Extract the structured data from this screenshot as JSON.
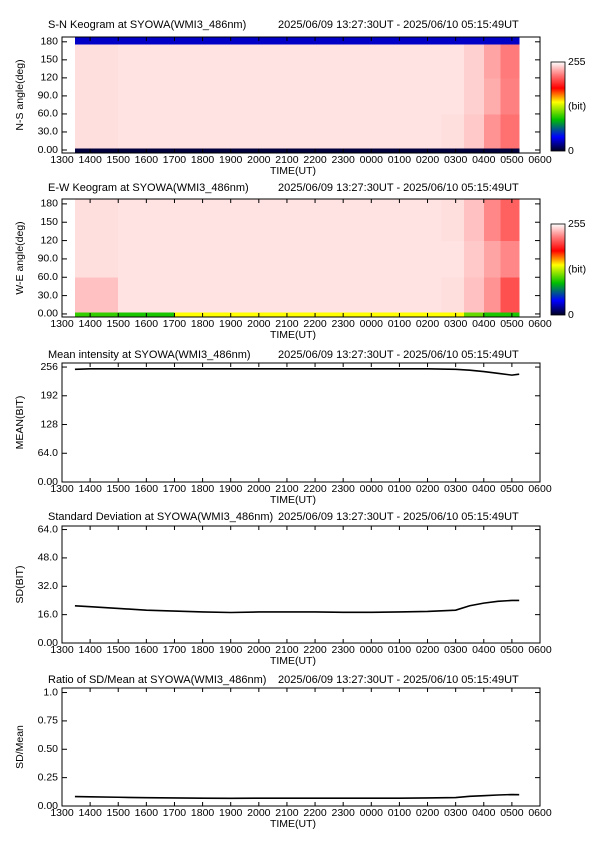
{
  "chart_data": [
    {
      "type": "heatmap",
      "title": "S-N Keogram at SYOWA(WMI3_486nm)",
      "subtitle": "2025/06/09 13:27:30UT - 2025/06/10 05:15:49UT",
      "xlabel": "TIME(UT)",
      "ylabel": "N-S angle(deg)",
      "xlim": [
        13,
        30
      ],
      "xticks": [
        {
          "value": 13,
          "label": "1300"
        },
        {
          "value": 14,
          "label": "1400"
        },
        {
          "value": 15,
          "label": "1500"
        },
        {
          "value": 16,
          "label": "1600"
        },
        {
          "value": 17,
          "label": "1700"
        },
        {
          "value": 18,
          "label": "1800"
        },
        {
          "value": 19,
          "label": "1900"
        },
        {
          "value": 20,
          "label": "2000"
        },
        {
          "value": 21,
          "label": "2100"
        },
        {
          "value": 22,
          "label": "2200"
        },
        {
          "value": 23,
          "label": "2300"
        },
        {
          "value": 24,
          "label": "0000"
        },
        {
          "value": 25,
          "label": "0100"
        },
        {
          "value": 26,
          "label": "0200"
        },
        {
          "value": 27,
          "label": "0300"
        },
        {
          "value": 28,
          "label": "0400"
        },
        {
          "value": 29,
          "label": "0500"
        },
        {
          "value": 30,
          "label": "0600"
        }
      ],
      "ylim": [
        -5,
        188
      ],
      "yticks": [
        {
          "value": 0,
          "label": "0.00"
        },
        {
          "value": 30,
          "label": "30.0"
        },
        {
          "value": 60,
          "label": "60.0"
        },
        {
          "value": 90,
          "label": "90.0"
        },
        120,
        150,
        180
      ],
      "x_bins": [
        13.46,
        15,
        17,
        19,
        21,
        23,
        25,
        26.5,
        27.3,
        28,
        28.6,
        29.26
      ],
      "y_bins": [
        -5,
        3,
        60,
        120,
        176,
        188
      ],
      "values": [
        [
          5,
          5,
          5,
          5,
          5,
          5,
          5,
          5,
          5,
          5,
          5
        ],
        [
          246,
          247,
          247,
          247,
          247,
          247,
          247,
          246,
          240,
          225,
          215
        ],
        [
          246,
          247,
          247,
          247,
          247,
          247,
          247,
          247,
          242,
          232,
          220
        ],
        [
          246,
          247,
          247,
          247,
          247,
          247,
          247,
          247,
          242,
          230,
          218
        ],
        [
          30,
          30,
          30,
          30,
          30,
          30,
          30,
          30,
          30,
          30,
          30
        ]
      ],
      "clim": [
        0,
        255
      ],
      "colorbar_ticks": [
        0,
        255
      ],
      "colorbar_label": "(bit)",
      "colormap": {
        "stops": [
          0,
          40,
          90,
          140,
          180,
          220,
          255
        ],
        "colors": [
          "#000020",
          "#0000ff",
          "#00c000",
          "#ffff00",
          "#ff0000",
          "#ff8080",
          "#ffffff"
        ]
      }
    },
    {
      "type": "heatmap",
      "title": "E-W Keogram at SYOWA(WMI3_486nm)",
      "subtitle": "2025/06/09 13:27:30UT - 2025/06/10 05:15:49UT",
      "xlabel": "TIME(UT)",
      "ylabel": "W-E angle(deg)",
      "xlim": [
        13,
        30
      ],
      "xticks": [
        {
          "value": 13,
          "label": "1300"
        },
        {
          "value": 14,
          "label": "1400"
        },
        {
          "value": 15,
          "label": "1500"
        },
        {
          "value": 16,
          "label": "1600"
        },
        {
          "value": 17,
          "label": "1700"
        },
        {
          "value": 18,
          "label": "1800"
        },
        {
          "value": 19,
          "label": "1900"
        },
        {
          "value": 20,
          "label": "2000"
        },
        {
          "value": 21,
          "label": "2100"
        },
        {
          "value": 22,
          "label": "2200"
        },
        {
          "value": 23,
          "label": "2300"
        },
        {
          "value": 24,
          "label": "0000"
        },
        {
          "value": 25,
          "label": "0100"
        },
        {
          "value": 26,
          "label": "0200"
        },
        {
          "value": 27,
          "label": "0300"
        },
        {
          "value": 28,
          "label": "0400"
        },
        {
          "value": 29,
          "label": "0500"
        },
        {
          "value": 30,
          "label": "0600"
        }
      ],
      "ylim": [
        -5,
        188
      ],
      "yticks": [
        {
          "value": 0,
          "label": "0.00"
        },
        {
          "value": 30,
          "label": "30.0"
        },
        {
          "value": 60,
          "label": "60.0"
        },
        {
          "value": 90,
          "label": "90.0"
        },
        120,
        150,
        180
      ],
      "x_bins": [
        13.46,
        15,
        17,
        19,
        21,
        23,
        25,
        26.5,
        27.3,
        28,
        28.6,
        29.26
      ],
      "y_bins": [
        -5,
        3,
        60,
        120,
        188
      ],
      "values": [
        [
          100,
          95,
          140,
          140,
          140,
          140,
          140,
          140,
          110,
          95,
          95
        ],
        [
          238,
          247,
          247,
          247,
          247,
          247,
          247,
          246,
          238,
          225,
          205
        ],
        [
          246,
          247,
          247,
          247,
          247,
          247,
          247,
          247,
          240,
          230,
          222
        ],
        [
          246,
          247,
          247,
          247,
          247,
          247,
          247,
          246,
          238,
          222,
          210
        ]
      ],
      "clim": [
        0,
        255
      ],
      "colorbar_ticks": [
        0,
        255
      ],
      "colorbar_label": "(bit)",
      "colormap": {
        "stops": [
          0,
          40,
          90,
          140,
          180,
          220,
          255
        ],
        "colors": [
          "#000020",
          "#0000ff",
          "#00c000",
          "#ffff00",
          "#ff0000",
          "#ff8080",
          "#ffffff"
        ]
      }
    },
    {
      "type": "line",
      "title": "Mean intensity at SYOWA(WMI3_486nm)",
      "subtitle": "2025/06/09 13:27:30UT - 2025/06/10 05:15:49UT",
      "xlabel": "TIME(UT)",
      "ylabel": "MEAN(BIT)",
      "color": "#000000",
      "xlim": [
        13,
        30
      ],
      "xticks": [
        {
          "value": 13,
          "label": "1300"
        },
        {
          "value": 14,
          "label": "1400"
        },
        {
          "value": 15,
          "label": "1500"
        },
        {
          "value": 16,
          "label": "1600"
        },
        {
          "value": 17,
          "label": "1700"
        },
        {
          "value": 18,
          "label": "1800"
        },
        {
          "value": 19,
          "label": "1900"
        },
        {
          "value": 20,
          "label": "2000"
        },
        {
          "value": 21,
          "label": "2100"
        },
        {
          "value": 22,
          "label": "2200"
        },
        {
          "value": 23,
          "label": "2300"
        },
        {
          "value": 24,
          "label": "0000"
        },
        {
          "value": 25,
          "label": "0100"
        },
        {
          "value": 26,
          "label": "0200"
        },
        {
          "value": 27,
          "label": "0300"
        },
        {
          "value": 28,
          "label": "0400"
        },
        {
          "value": 29,
          "label": "0500"
        },
        {
          "value": 30,
          "label": "0600"
        }
      ],
      "ylim": [
        0,
        265
      ],
      "yticks": [
        {
          "value": 0,
          "label": "0.00"
        },
        {
          "value": 64,
          "label": "64.0"
        },
        128,
        192,
        256
      ],
      "x": [
        13.46,
        14,
        15,
        16,
        17,
        18,
        19,
        20,
        21,
        22,
        23,
        24,
        25,
        26,
        27,
        27.5,
        28,
        28.5,
        29,
        29.26
      ],
      "values": [
        251,
        252,
        252,
        252,
        252,
        252,
        252,
        252,
        252,
        252,
        252,
        252,
        252,
        252,
        251,
        249,
        246,
        242,
        238,
        240
      ]
    },
    {
      "type": "line",
      "title": "Standard Deviation at SYOWA(WMI3_486nm)",
      "subtitle": "2025/06/09 13:27:30UT - 2025/06/10 05:15:49UT",
      "xlabel": "TIME(UT)",
      "ylabel": "SD(BIT)",
      "color": "#000000",
      "xlim": [
        13,
        30
      ],
      "xticks": [
        {
          "value": 13,
          "label": "1300"
        },
        {
          "value": 14,
          "label": "1400"
        },
        {
          "value": 15,
          "label": "1500"
        },
        {
          "value": 16,
          "label": "1600"
        },
        {
          "value": 17,
          "label": "1700"
        },
        {
          "value": 18,
          "label": "1800"
        },
        {
          "value": 19,
          "label": "1900"
        },
        {
          "value": 20,
          "label": "2000"
        },
        {
          "value": 21,
          "label": "2100"
        },
        {
          "value": 22,
          "label": "2200"
        },
        {
          "value": 23,
          "label": "2300"
        },
        {
          "value": 24,
          "label": "0000"
        },
        {
          "value": 25,
          "label": "0100"
        },
        {
          "value": 26,
          "label": "0200"
        },
        {
          "value": 27,
          "label": "0300"
        },
        {
          "value": 28,
          "label": "0400"
        },
        {
          "value": 29,
          "label": "0500"
        },
        {
          "value": 30,
          "label": "0600"
        }
      ],
      "ylim": [
        0,
        66
      ],
      "yticks": [
        {
          "value": 0,
          "label": "0.00"
        },
        {
          "value": 16,
          "label": "16.0"
        },
        {
          "value": 32,
          "label": "32.0"
        },
        {
          "value": 48,
          "label": "48.0"
        },
        {
          "value": 64,
          "label": "64.0"
        }
      ],
      "x": [
        13.46,
        14,
        15,
        16,
        17,
        18,
        19,
        20,
        21,
        22,
        23,
        24,
        25,
        26,
        27,
        27.5,
        28,
        28.5,
        29,
        29.26
      ],
      "values": [
        21,
        20.5,
        19.5,
        18.5,
        18,
        17.5,
        17.2,
        17.5,
        17.5,
        17.5,
        17.3,
        17.3,
        17.5,
        17.8,
        18.5,
        21,
        22.5,
        23.5,
        24,
        24
      ]
    },
    {
      "type": "line",
      "title": "Ratio of SD/Mean at SYOWA(WMI3_486nm)",
      "subtitle": "2025/06/09 13:27:30UT - 2025/06/10 05:15:49UT",
      "xlabel": "TIME(UT)",
      "ylabel": "SD/Mean",
      "color": "#000000",
      "xlim": [
        13,
        30
      ],
      "xticks": [
        {
          "value": 13,
          "label": "1300"
        },
        {
          "value": 14,
          "label": "1400"
        },
        {
          "value": 15,
          "label": "1500"
        },
        {
          "value": 16,
          "label": "1600"
        },
        {
          "value": 17,
          "label": "1700"
        },
        {
          "value": 18,
          "label": "1800"
        },
        {
          "value": 19,
          "label": "1900"
        },
        {
          "value": 20,
          "label": "2000"
        },
        {
          "value": 21,
          "label": "2100"
        },
        {
          "value": 22,
          "label": "2200"
        },
        {
          "value": 23,
          "label": "2300"
        },
        {
          "value": 24,
          "label": "0000"
        },
        {
          "value": 25,
          "label": "0100"
        },
        {
          "value": 26,
          "label": "0200"
        },
        {
          "value": 27,
          "label": "0300"
        },
        {
          "value": 28,
          "label": "0400"
        },
        {
          "value": 29,
          "label": "0500"
        },
        {
          "value": 30,
          "label": "0600"
        }
      ],
      "ylim": [
        0,
        1.04
      ],
      "yticks": [
        {
          "value": 0,
          "label": "0.00"
        },
        0.25,
        {
          "value": 0.5,
          "label": "0.50"
        },
        0.75,
        {
          "value": 1,
          "label": "1.0"
        }
      ],
      "x": [
        13.46,
        14,
        15,
        16,
        17,
        18,
        19,
        20,
        21,
        22,
        23,
        24,
        25,
        26,
        27,
        27.5,
        28,
        28.5,
        29,
        29.26
      ],
      "values": [
        0.083,
        0.081,
        0.077,
        0.073,
        0.071,
        0.069,
        0.068,
        0.069,
        0.069,
        0.069,
        0.069,
        0.069,
        0.069,
        0.071,
        0.074,
        0.085,
        0.091,
        0.097,
        0.101,
        0.1
      ]
    }
  ]
}
